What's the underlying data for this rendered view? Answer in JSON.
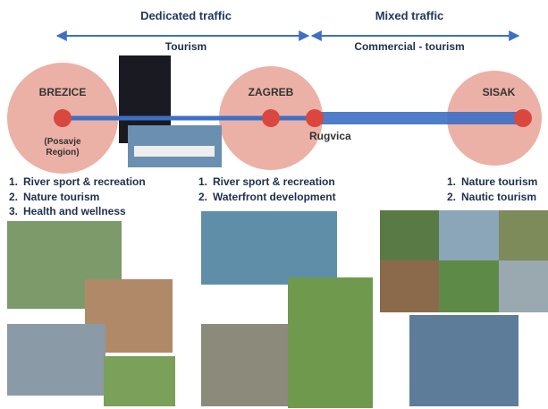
{
  "header": {
    "left_title": "Dedicated traffic",
    "right_title": "Mixed traffic",
    "left_sub": "Tourism",
    "right_sub": "Commercial - tourism"
  },
  "nodes": [
    {
      "label": "BREZICE",
      "sub": "(Posavje Region)"
    },
    {
      "label": "ZAGREB"
    },
    {
      "label": "Rugvica"
    },
    {
      "label": "SISAK"
    }
  ],
  "lists": [
    {
      "items": [
        {
          "num": "1.",
          "text": "River sport & recreation"
        },
        {
          "num": "2.",
          "text": "Nature tourism"
        },
        {
          "num": "3.",
          "text": "Health and wellness"
        }
      ]
    },
    {
      "items": [
        {
          "num": "1.",
          "text": "River sport & recreation"
        },
        {
          "num": "2.",
          "text": "Waterfront development"
        }
      ]
    },
    {
      "items": [
        {
          "num": "1.",
          "text": "Nature tourism"
        },
        {
          "num": "2.",
          "text": "Nautic tourism"
        }
      ]
    }
  ]
}
